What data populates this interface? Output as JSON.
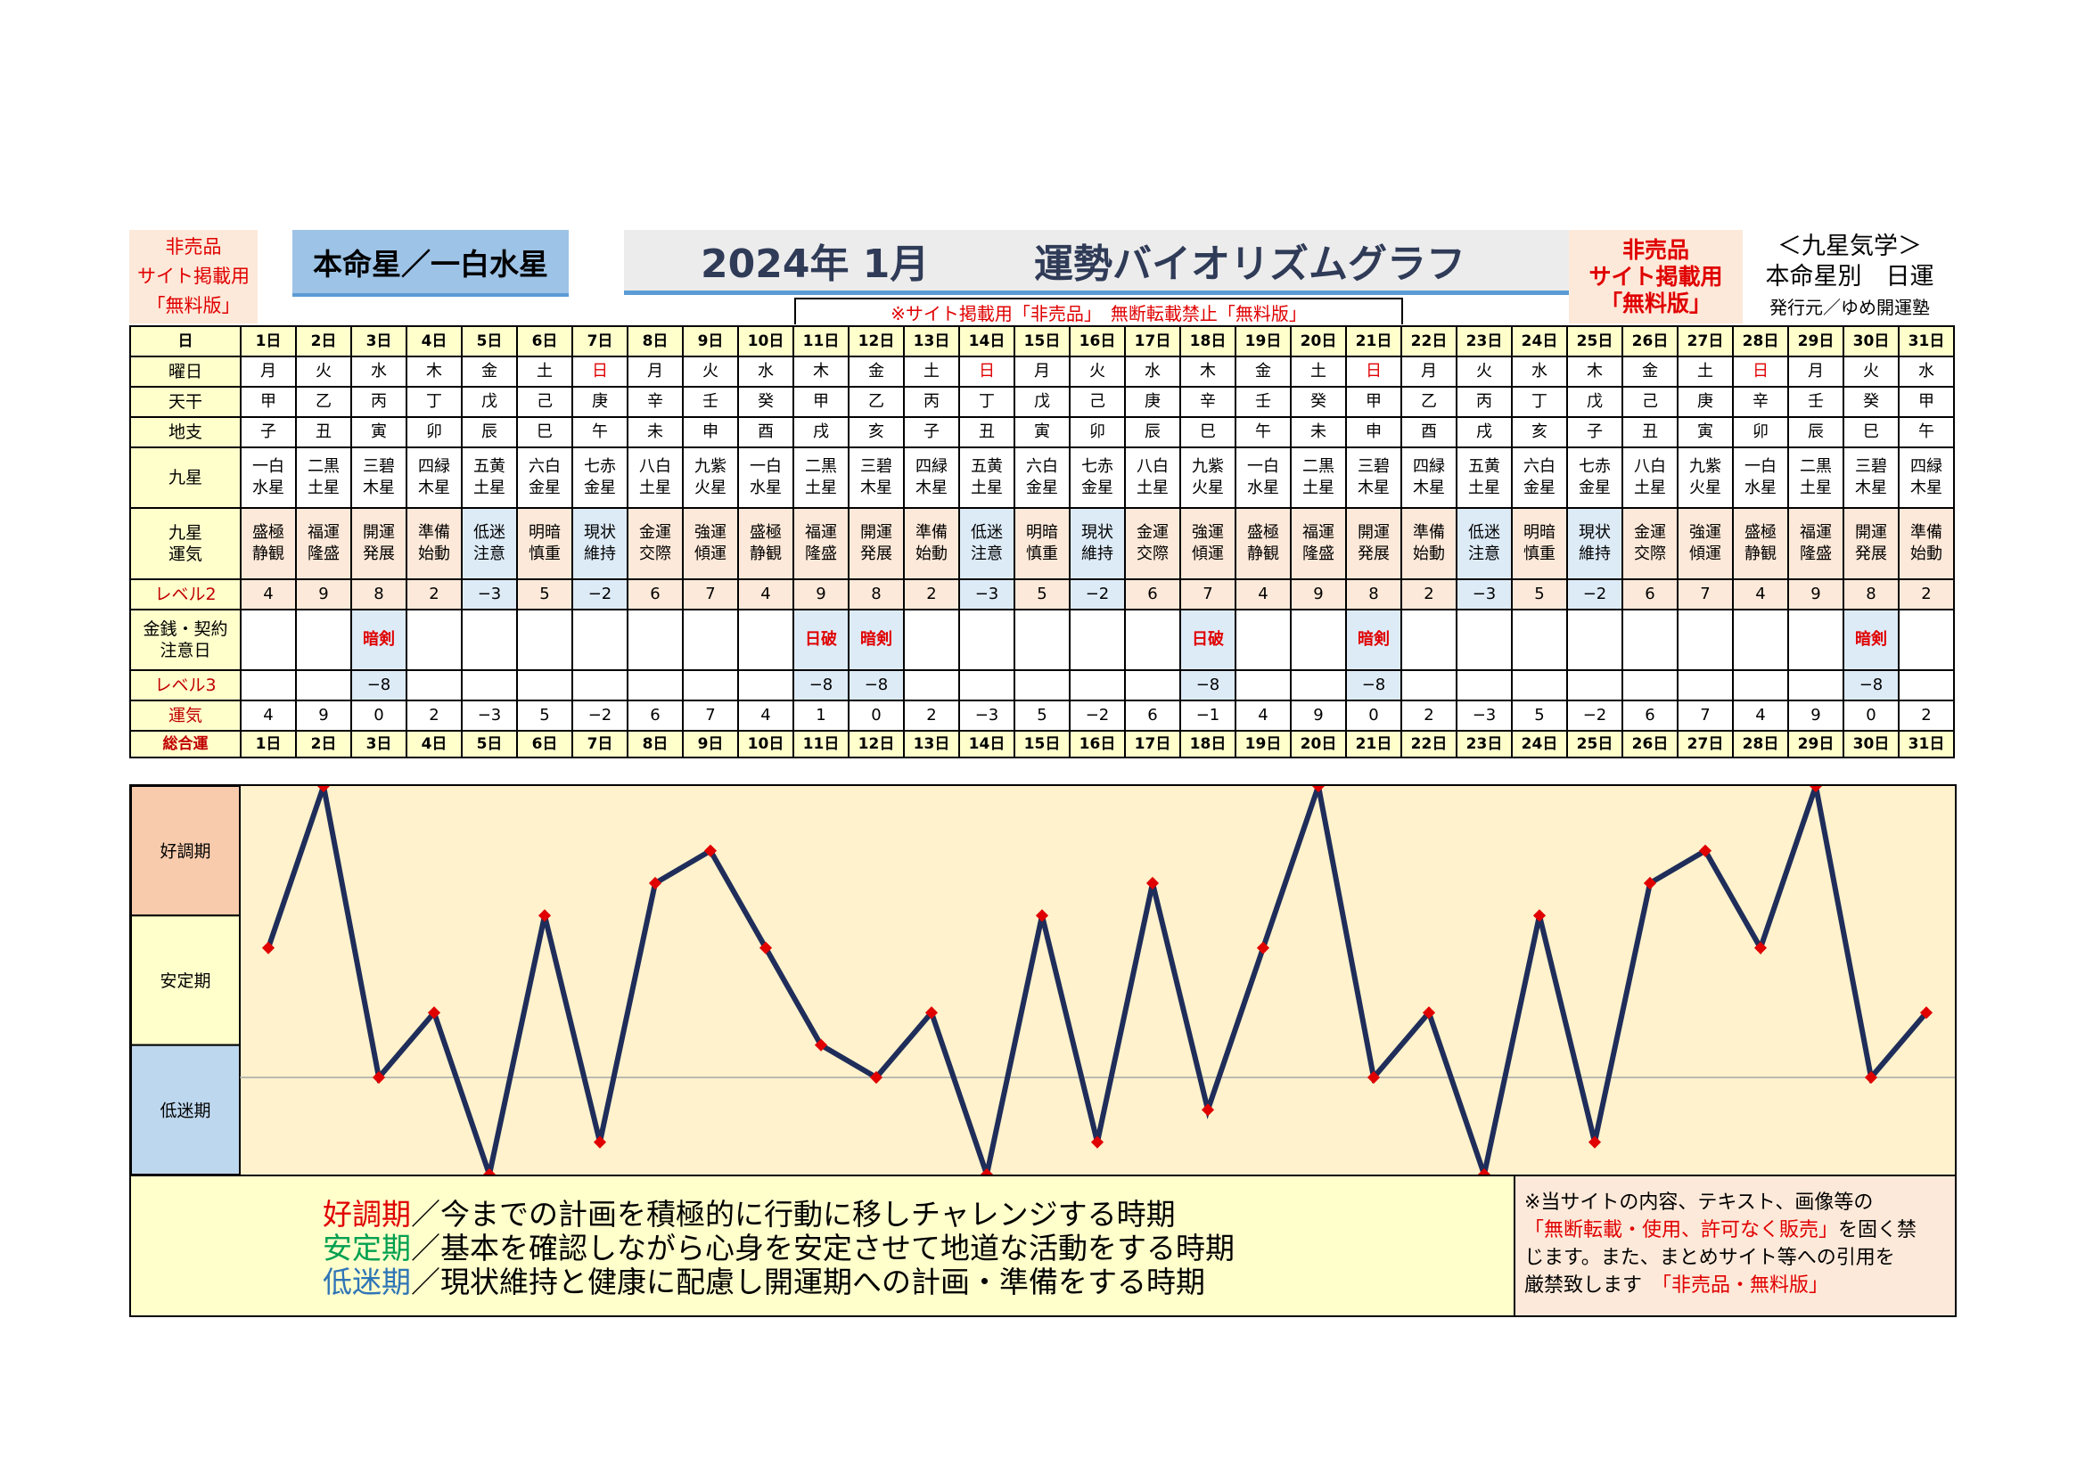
{
  "header": {
    "left_badge": [
      "非売品",
      "サイト掲載用",
      "「無料版」"
    ],
    "honmei": "本命星／一白水星",
    "title_year": "2024年 1月",
    "title_main": "運勢バイオリズムグラフ",
    "right_badge": [
      "非売品",
      "サイト掲載用",
      "「無料版」"
    ],
    "kyusei": [
      "＜九星気学＞",
      "本命星別　日運"
    ],
    "publisher": "発行元／ゆめ開運塾",
    "notice": "※サイト掲載用「非売品」　無断転載禁止「無料版」"
  },
  "row_labels": {
    "day": "日",
    "weekday": "曜日",
    "tenkan": "天干",
    "chishi": "地支",
    "kyusei": "九星",
    "kyusei_unki": [
      "九星",
      "運気"
    ],
    "level2": "レベル2",
    "caution": [
      "金銭・契約",
      "注意日"
    ],
    "level3": "レベル3",
    "total": [
      "運気",
      "総合運"
    ]
  },
  "days": [
    "1日",
    "2日",
    "3日",
    "4日",
    "5日",
    "6日",
    "7日",
    "8日",
    "9日",
    "10日",
    "11日",
    "12日",
    "13日",
    "14日",
    "15日",
    "16日",
    "17日",
    "18日",
    "19日",
    "20日",
    "21日",
    "22日",
    "23日",
    "24日",
    "25日",
    "26日",
    "27日",
    "28日",
    "29日",
    "30日",
    "31日"
  ],
  "weekdays": [
    "月",
    "火",
    "水",
    "木",
    "金",
    "土",
    "日",
    "月",
    "火",
    "水",
    "木",
    "金",
    "土",
    "日",
    "月",
    "火",
    "水",
    "木",
    "金",
    "土",
    "日",
    "月",
    "火",
    "水",
    "木",
    "金",
    "土",
    "日",
    "月",
    "火",
    "水"
  ],
  "tenkan": [
    "甲",
    "乙",
    "丙",
    "丁",
    "戊",
    "己",
    "庚",
    "辛",
    "壬",
    "癸",
    "甲",
    "乙",
    "丙",
    "丁",
    "戊",
    "己",
    "庚",
    "辛",
    "壬",
    "癸",
    "甲",
    "乙",
    "丙",
    "丁",
    "戊",
    "己",
    "庚",
    "辛",
    "壬",
    "癸",
    "甲"
  ],
  "chishi": [
    "子",
    "丑",
    "寅",
    "卯",
    "辰",
    "巳",
    "午",
    "未",
    "申",
    "酉",
    "戌",
    "亥",
    "子",
    "丑",
    "寅",
    "卯",
    "辰",
    "巳",
    "午",
    "未",
    "申",
    "酉",
    "戌",
    "亥",
    "子",
    "丑",
    "寅",
    "卯",
    "辰",
    "巳",
    "午"
  ],
  "kyusei_top": [
    "一白",
    "二黒",
    "三碧",
    "四緑",
    "五黄",
    "六白",
    "七赤",
    "八白",
    "九紫",
    "一白",
    "二黒",
    "三碧",
    "四緑",
    "五黄",
    "六白",
    "七赤",
    "八白",
    "九紫",
    "一白",
    "二黒",
    "三碧",
    "四緑",
    "五黄",
    "六白",
    "七赤",
    "八白",
    "九紫",
    "一白",
    "二黒",
    "三碧",
    "四緑"
  ],
  "kyusei_bottom": [
    "水星",
    "土星",
    "木星",
    "木星",
    "土星",
    "金星",
    "金星",
    "土星",
    "火星",
    "水星",
    "土星",
    "木星",
    "木星",
    "土星",
    "金星",
    "金星",
    "土星",
    "火星",
    "水星",
    "土星",
    "木星",
    "木星",
    "土星",
    "金星",
    "金星",
    "土星",
    "火星",
    "水星",
    "土星",
    "木星",
    "木星"
  ],
  "unki_top": [
    "盛極",
    "福運",
    "開運",
    "準備",
    "低迷",
    "明暗",
    "現状",
    "金運",
    "強運",
    "盛極",
    "福運",
    "開運",
    "準備",
    "低迷",
    "明暗",
    "現状",
    "金運",
    "強運",
    "盛極",
    "福運",
    "開運",
    "準備",
    "低迷",
    "明暗",
    "現状",
    "金運",
    "強運",
    "盛極",
    "福運",
    "開運",
    "準備"
  ],
  "unki_bottom": [
    "静観",
    "隆盛",
    "発展",
    "始動",
    "注意",
    "慎重",
    "維持",
    "交際",
    "傾運",
    "静観",
    "隆盛",
    "発展",
    "始動",
    "注意",
    "慎重",
    "維持",
    "交際",
    "傾運",
    "静観",
    "隆盛",
    "発展",
    "始動",
    "注意",
    "慎重",
    "維持",
    "交際",
    "傾運",
    "静観",
    "隆盛",
    "発展",
    "始動"
  ],
  "level2": [
    "4",
    "9",
    "8",
    "2",
    "−3",
    "5",
    "−2",
    "6",
    "7",
    "4",
    "9",
    "8",
    "2",
    "−3",
    "5",
    "−2",
    "6",
    "7",
    "4",
    "9",
    "8",
    "2",
    "−3",
    "5",
    "−2",
    "6",
    "7",
    "4",
    "9",
    "8",
    "2"
  ],
  "caution": [
    "",
    "",
    "暗剣",
    "",
    "",
    "",
    "",
    "",
    "",
    "",
    "日破",
    "暗剣",
    "",
    "",
    "",
    "",
    "",
    "日破",
    "",
    "",
    "暗剣",
    "",
    "",
    "",
    "",
    "",
    "",
    "",
    "",
    "暗剣",
    ""
  ],
  "level3": [
    "",
    "",
    "−8",
    "",
    "",
    "",
    "",
    "",
    "",
    "",
    "−8",
    "−8",
    "",
    "",
    "",
    "",
    "",
    "−8",
    "",
    "",
    "−8",
    "",
    "",
    "",
    "",
    "",
    "",
    "",
    "",
    "−8",
    ""
  ],
  "total": [
    "4",
    "9",
    "0",
    "2",
    "−3",
    "5",
    "−2",
    "6",
    "7",
    "4",
    "1",
    "0",
    "2",
    "−3",
    "5",
    "−2",
    "6",
    "−1",
    "4",
    "9",
    "0",
    "2",
    "−3",
    "5",
    "−2",
    "6",
    "7",
    "4",
    "9",
    "0",
    "2"
  ],
  "bands": {
    "good": "好調期",
    "stable": "安定期",
    "low": "低迷期"
  },
  "legend": [
    {
      "term": "好調期",
      "text": "／今までの計画を積極的に行動に移しチャレンジする時期",
      "color": "#e00000"
    },
    {
      "term": "安定期",
      "text": "／基本を確認しながら心身を安定させて地道な活動をする時期",
      "color": "#00a050"
    },
    {
      "term": "低迷期",
      "text": "／現状維持と健康に配慮し開運期への計画・準備をする時期",
      "color": "#2e75b6"
    }
  ],
  "copyright": {
    "line1": "※当サイトの内容、テキスト、画像等の",
    "line2_red": "「無断転載・使用、許可なく販売」",
    "line2_tail": "を固く禁",
    "line3": "じます。また、まとめサイト等への引用を",
    "line4": "厳禁致します",
    "line4_red": "「非売品・無料版」"
  },
  "colors": {
    "line": "#1f2d5a",
    "marker": "#e00000",
    "good_band": "#f8cbad",
    "stable_band": "#ffffcc",
    "low_band": "#bdd7ee",
    "plot_bg": "#fff2cc",
    "sunday": "#e00000"
  },
  "chart_data": {
    "type": "line",
    "title": "運勢バイオリズムグラフ",
    "x": [
      "1日",
      "2日",
      "3日",
      "4日",
      "5日",
      "6日",
      "7日",
      "8日",
      "9日",
      "10日",
      "11日",
      "12日",
      "13日",
      "14日",
      "15日",
      "16日",
      "17日",
      "18日",
      "19日",
      "20日",
      "21日",
      "22日",
      "23日",
      "24日",
      "25日",
      "26日",
      "27日",
      "28日",
      "29日",
      "30日",
      "31日"
    ],
    "series": [
      {
        "name": "運気 総合運",
        "values": [
          4,
          9,
          0,
          2,
          -3,
          5,
          -2,
          6,
          7,
          4,
          1,
          0,
          2,
          -3,
          5,
          -2,
          6,
          -1,
          4,
          9,
          0,
          2,
          -3,
          5,
          -2,
          6,
          7,
          4,
          9,
          0,
          2
        ]
      }
    ],
    "ylim": [
      -3,
      9
    ],
    "baseline": 0,
    "bands": [
      "好調期",
      "安定期",
      "低迷期"
    ],
    "grid": false
  }
}
